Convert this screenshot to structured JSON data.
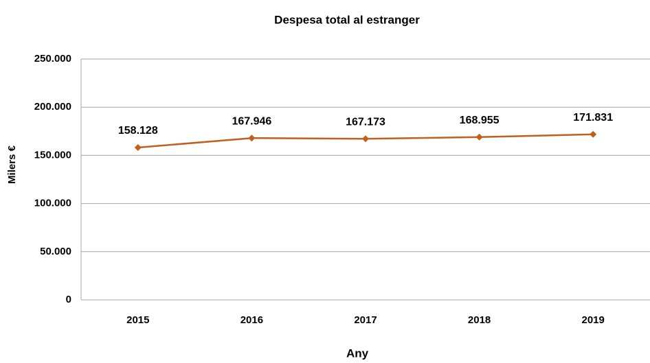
{
  "chart_data": {
    "type": "line",
    "title": "Despesa  total al estranger",
    "x_label": "Any",
    "y_label": "Milers €",
    "categories": [
      "2015",
      "2016",
      "2017",
      "2018",
      "2019"
    ],
    "series": [
      {
        "name": "Despesa total",
        "color": "#c0601a",
        "values": [
          158128,
          167946,
          167173,
          168955,
          171831
        ],
        "value_labels": [
          "158.128",
          "167.946",
          "167.173",
          "168.955",
          "171.831"
        ]
      }
    ],
    "ylim": [
      0,
      250000
    ],
    "yticks": [
      0,
      {
        "value": 50000,
        "label": "50.000"
      },
      {
        "value": 100000,
        "label": "100.000"
      },
      {
        "value": 150000,
        "label": "150.000"
      },
      {
        "value": 200000,
        "label": "200.000"
      },
      {
        "value": 250000,
        "label": "250.000"
      }
    ],
    "grid": true
  }
}
